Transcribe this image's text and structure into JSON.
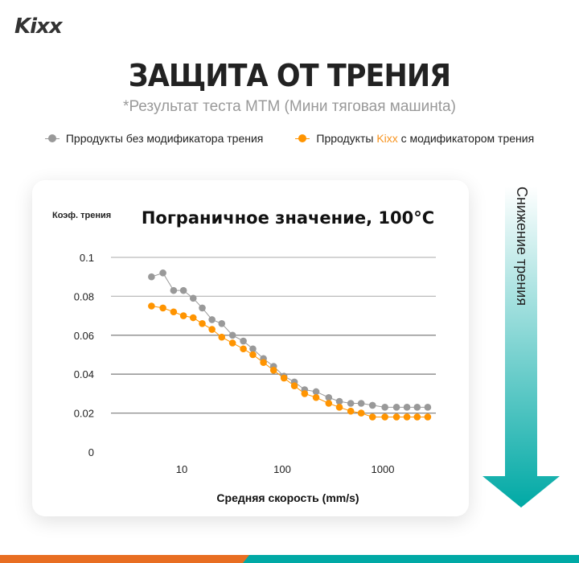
{
  "brand": {
    "logo": "Kixx",
    "accent": "#f7931e",
    "teal": "#00a9a5",
    "orange_stripe": "#e86e22"
  },
  "header": {
    "title": "ЗАЩИТА ОТ ТРЕНИЯ",
    "subtitle": "*Результат теста MTM (Мини тяговая машинta)"
  },
  "legend": {
    "series1": "Прродукты без модификатора трения",
    "series2_prefix": "Прродукты ",
    "series2_brand": "Kixx",
    "series2_suffix": " с модификатором трения"
  },
  "arrow": {
    "label": "Снижение трения"
  },
  "chart_data": {
    "type": "scatter",
    "title": "Пограничное значение, 100°C",
    "ylabel": "Коэф. трения",
    "xlabel": "Средняя скорость (mm/s)",
    "xscale": "log",
    "xlim": [
      3,
      3500
    ],
    "ylim": [
      0,
      0.1
    ],
    "yticks": [
      "0",
      "0.02",
      "0.04",
      "0.06",
      "0.08",
      "0.1"
    ],
    "xticks": [
      "10",
      "100",
      "1000"
    ],
    "grid": true,
    "legend_position": "top",
    "x": [
      5,
      6.5,
      8.3,
      10.4,
      13,
      16,
      20,
      25,
      32,
      41,
      51,
      65,
      82,
      104,
      132,
      167,
      217,
      290,
      370,
      480,
      610,
      790,
      1050,
      1370,
      1740,
      2200,
      2800
    ],
    "series": [
      {
        "name": "Прродукты без модификатора трения",
        "color": "#999999",
        "values": [
          0.09,
          0.092,
          0.083,
          0.083,
          0.079,
          0.074,
          0.068,
          0.066,
          0.06,
          0.057,
          0.053,
          0.048,
          0.044,
          0.039,
          0.036,
          0.032,
          0.031,
          0.028,
          0.026,
          0.025,
          0.025,
          0.024,
          0.023,
          0.023,
          0.023,
          0.023,
          0.023
        ]
      },
      {
        "name": "Прродукты Kixx с модификатором трения",
        "color": "#ff9400",
        "values": [
          0.075,
          0.074,
          0.072,
          0.07,
          0.069,
          0.066,
          0.063,
          0.059,
          0.056,
          0.053,
          0.05,
          0.046,
          0.042,
          0.038,
          0.034,
          0.03,
          0.028,
          0.025,
          0.023,
          0.021,
          0.02,
          0.018,
          0.018,
          0.018,
          0.018,
          0.018,
          0.018
        ]
      }
    ]
  }
}
